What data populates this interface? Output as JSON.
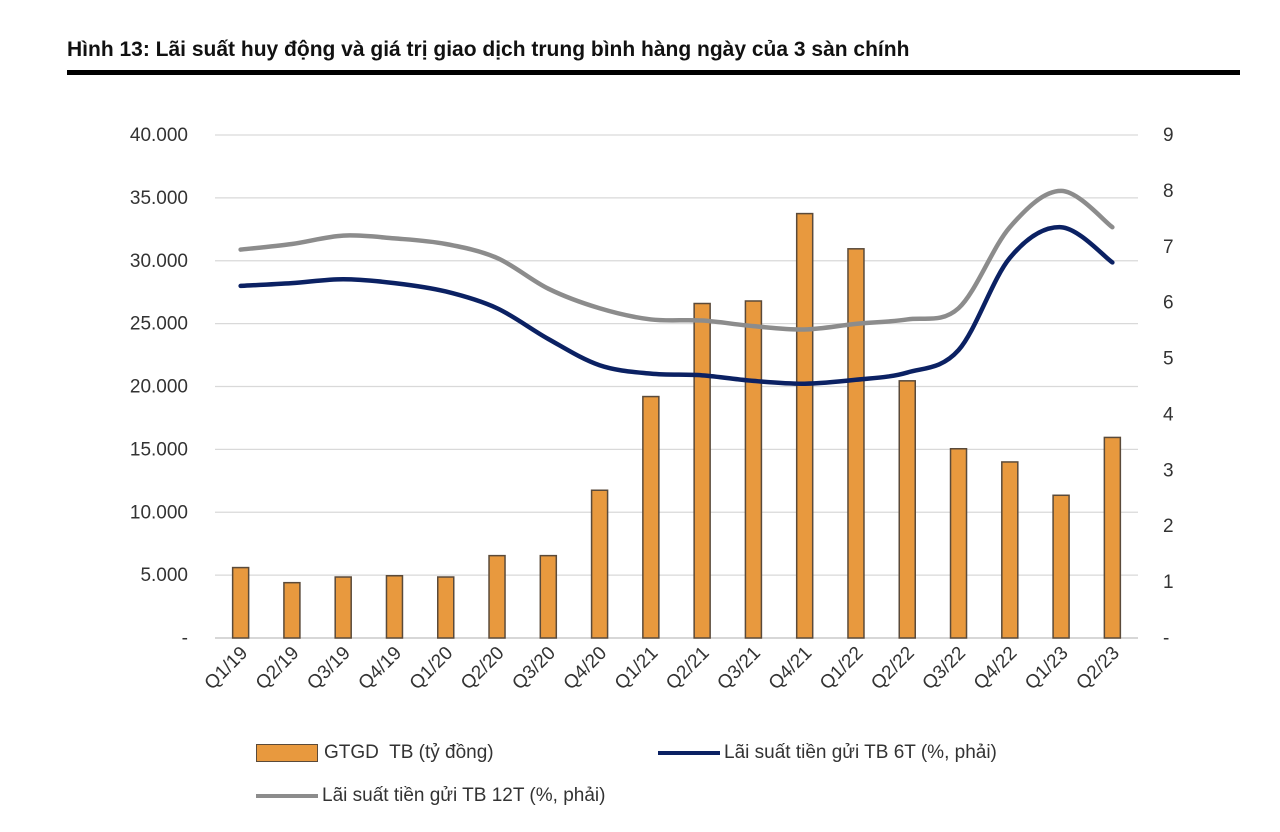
{
  "figure": {
    "title": "Hình 13: Lãi suất huy động và giá trị giao dịch trung bình hàng ngày của 3 sàn chính"
  },
  "colors": {
    "bar": "#E8993E",
    "bar_border": "#5a4a3a",
    "line_6m": "#0B2163",
    "line_12m": "#8C8C8C",
    "grid": "#D9D9D9",
    "axis_text": "#333333"
  },
  "chart_data": {
    "type": "bar",
    "categories": [
      "Q1/19",
      "Q2/19",
      "Q3/19",
      "Q4/19",
      "Q1/20",
      "Q2/20",
      "Q3/20",
      "Q4/20",
      "Q1/21",
      "Q2/21",
      "Q3/21",
      "Q4/21",
      "Q1/22",
      "Q2/22",
      "Q3/22",
      "Q4/22",
      "Q1/23",
      "Q2/23"
    ],
    "series": [
      {
        "name": "GTGD  TB (tỷ đồng)",
        "kind": "bar",
        "axis": "left",
        "values": [
          5600,
          4400,
          4850,
          4950,
          4850,
          6550,
          6550,
          11750,
          19200,
          26600,
          26800,
          33750,
          30950,
          20450,
          15050,
          14000,
          11350,
          15950
        ]
      },
      {
        "name": "Lãi suất tiền gửi TB 6T (%, phải)",
        "kind": "line",
        "axis": "right",
        "values": [
          6.3,
          6.35,
          6.42,
          6.35,
          6.2,
          5.9,
          5.35,
          4.88,
          4.73,
          4.7,
          4.6,
          4.55,
          4.62,
          4.75,
          5.15,
          6.8,
          7.35,
          6.72
        ]
      },
      {
        "name": "Lãi suất tiền gửi TB 12T (%, phải)",
        "kind": "line",
        "axis": "right",
        "values": [
          6.95,
          7.05,
          7.2,
          7.15,
          7.05,
          6.8,
          6.25,
          5.9,
          5.7,
          5.68,
          5.58,
          5.52,
          5.62,
          5.7,
          5.9,
          7.35,
          8.0,
          7.35
        ]
      }
    ],
    "left_axis": {
      "min": 0,
      "max": 40000,
      "ticks": [
        "-",
        "5.000",
        "10.000",
        "15.000",
        "20.000",
        "25.000",
        "30.000",
        "35.000",
        "40.000"
      ]
    },
    "right_axis": {
      "min": 0,
      "max": 9,
      "ticks": [
        "-",
        "1",
        "2",
        "3",
        "4",
        "5",
        "6",
        "7",
        "8",
        "9"
      ]
    },
    "grid": true,
    "legend_position": "bottom"
  }
}
